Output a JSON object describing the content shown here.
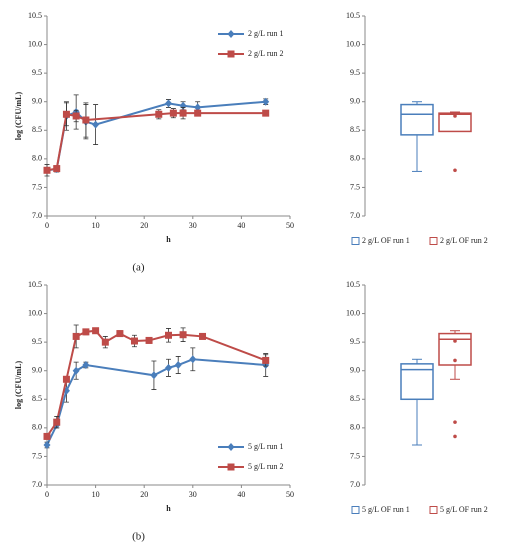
{
  "chart_data": [
    {
      "type": "line",
      "caption": "(a)",
      "xlabel": "h",
      "ylabel": "log (CFU/mL)",
      "legend": "upper right",
      "xlim": [
        0,
        50
      ],
      "xticks": [
        0,
        10,
        20,
        30,
        40,
        50
      ],
      "ylim": [
        7,
        10.5
      ],
      "yticks": [
        {
          "value": 7,
          "label": "7.0"
        },
        {
          "value": 7.5,
          "label": "7.5"
        },
        {
          "value": 8,
          "label": "8.0"
        },
        {
          "value": 8.5,
          "label": "8.5"
        },
        {
          "value": 9,
          "label": "9.0"
        },
        {
          "value": 9.5,
          "label": "9.5"
        },
        {
          "value": 10,
          "label": "10.0"
        },
        {
          "value": 10.5,
          "label": "10.5"
        }
      ],
      "series": [
        {
          "name": "2 g/L run 1",
          "color": "#4a7ebb",
          "marker": "diamond",
          "x": [
            0,
            2,
            4,
            6,
            8,
            10,
            25,
            28,
            31,
            45
          ],
          "values": [
            7.8,
            7.82,
            8.75,
            8.82,
            8.65,
            8.6,
            8.97,
            8.93,
            8.9,
            9.0
          ],
          "errors": [
            0.05,
            0.05,
            0.25,
            0.3,
            0.3,
            0.35,
            0.07,
            0.07,
            0.1,
            0.05
          ]
        },
        {
          "name": "2 g/L run 2",
          "color": "#be4b48",
          "marker": "square",
          "x": [
            0,
            2,
            4,
            6,
            8,
            23,
            26,
            28,
            31,
            45
          ],
          "values": [
            7.8,
            7.83,
            8.78,
            8.75,
            8.68,
            8.78,
            8.8,
            8.8,
            8.8,
            8.8
          ],
          "errors": [
            0.1,
            0.05,
            0.2,
            0.1,
            0.3,
            0.08,
            0.08,
            0.1,
            0.05,
            0.03
          ]
        }
      ]
    },
    {
      "type": "box",
      "ylim": [
        7,
        10.5
      ],
      "yticks": [
        {
          "value": 7,
          "label": "7.0"
        },
        {
          "value": 7.5,
          "label": "7.5"
        },
        {
          "value": 8,
          "label": "8.0"
        },
        {
          "value": 8.5,
          "label": "8.5"
        },
        {
          "value": 9,
          "label": "9.0"
        },
        {
          "value": 9.5,
          "label": "9.5"
        },
        {
          "value": 10,
          "label": "10.0"
        },
        {
          "value": 10.5,
          "label": "10.5"
        }
      ],
      "categories": [
        "2 g/L OF run 1",
        "2 g/L OF run 2"
      ],
      "colors": [
        "#4a7ebb",
        "#be4b48"
      ],
      "boxes": [
        {
          "min": 7.78,
          "q1": 8.42,
          "median": 8.78,
          "q3": 8.95,
          "max": 9.0,
          "outliers": []
        },
        {
          "min": 8.48,
          "q1": 8.48,
          "median": 8.78,
          "q3": 8.8,
          "max": 8.82,
          "outliers": [
            7.8,
            8.75
          ]
        }
      ]
    },
    {
      "type": "line",
      "caption": "(b)",
      "xlabel": "h",
      "ylabel": "log (CFU/mL)",
      "legend": "lower right",
      "xlim": [
        0,
        50
      ],
      "xticks": [
        0,
        10,
        20,
        30,
        40,
        50
      ],
      "ylim": [
        7,
        10.5
      ],
      "yticks": [
        {
          "value": 7,
          "label": "7.0"
        },
        {
          "value": 7.5,
          "label": "7.5"
        },
        {
          "value": 8,
          "label": "8.0"
        },
        {
          "value": 8.5,
          "label": "8.5"
        },
        {
          "value": 9,
          "label": "9.0"
        },
        {
          "value": 9.5,
          "label": "9.5"
        },
        {
          "value": 10,
          "label": "10.0"
        },
        {
          "value": 10.5,
          "label": "10.5"
        }
      ],
      "series": [
        {
          "name": "5 g/L run 1",
          "color": "#4a7ebb",
          "marker": "diamond",
          "x": [
            0,
            2,
            4,
            6,
            8,
            22,
            25,
            27,
            30,
            45
          ],
          "values": [
            7.7,
            8.05,
            8.65,
            9.0,
            9.1,
            8.92,
            9.05,
            9.1,
            9.2,
            9.1
          ],
          "errors": [
            0.05,
            0.05,
            0.2,
            0.15,
            0.05,
            0.25,
            0.15,
            0.15,
            0.2,
            0.2
          ]
        },
        {
          "name": "5 g/L run 2",
          "color": "#be4b48",
          "marker": "square",
          "x": [
            0,
            2,
            4,
            6,
            8,
            10,
            12,
            15,
            18,
            21,
            25,
            28,
            32,
            45
          ],
          "values": [
            7.85,
            8.1,
            8.85,
            9.6,
            9.68,
            9.7,
            9.5,
            9.65,
            9.52,
            9.53,
            9.62,
            9.63,
            9.6,
            9.18
          ],
          "errors": [
            0.05,
            0.1,
            0.05,
            0.2,
            0.05,
            0.05,
            0.1,
            0.05,
            0.1,
            0.05,
            0.12,
            0.12,
            0.05,
            0.1
          ]
        }
      ]
    },
    {
      "type": "box",
      "ylim": [
        7,
        10.5
      ],
      "yticks": [
        {
          "value": 7,
          "label": "7.0"
        },
        {
          "value": 7.5,
          "label": "7.5"
        },
        {
          "value": 8,
          "label": "8.0"
        },
        {
          "value": 8.5,
          "label": "8.5"
        },
        {
          "value": 9,
          "label": "9.0"
        },
        {
          "value": 9.5,
          "label": "9.5"
        },
        {
          "value": 10,
          "label": "10.0"
        },
        {
          "value": 10.5,
          "label": "10.5"
        }
      ],
      "categories": [
        "5 g/L OF run 1",
        "5 g/L OF run 2"
      ],
      "colors": [
        "#4a7ebb",
        "#be4b48"
      ],
      "boxes": [
        {
          "min": 7.7,
          "q1": 8.5,
          "median": 9.02,
          "q3": 9.12,
          "max": 9.2,
          "outliers": []
        },
        {
          "min": 8.85,
          "q1": 9.1,
          "median": 9.55,
          "q3": 9.65,
          "max": 9.7,
          "outliers": [
            7.85,
            8.1,
            9.18,
            9.52
          ]
        }
      ]
    }
  ]
}
